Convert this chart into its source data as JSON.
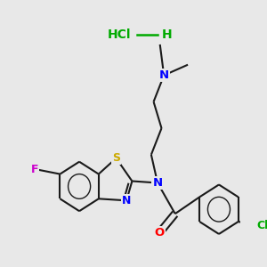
{
  "background_color": "#e8e8e8",
  "atom_colors": {
    "N": "#0000ff",
    "O": "#ff0000",
    "S": "#ccaa00",
    "F": "#cc00cc",
    "Cl": "#00aa00"
  },
  "bond_color": "#1a1a1a",
  "bond_width": 1.5,
  "font_size": 9.5,
  "hcl_color": "#00aa00",
  "hcl_font_size": 10
}
